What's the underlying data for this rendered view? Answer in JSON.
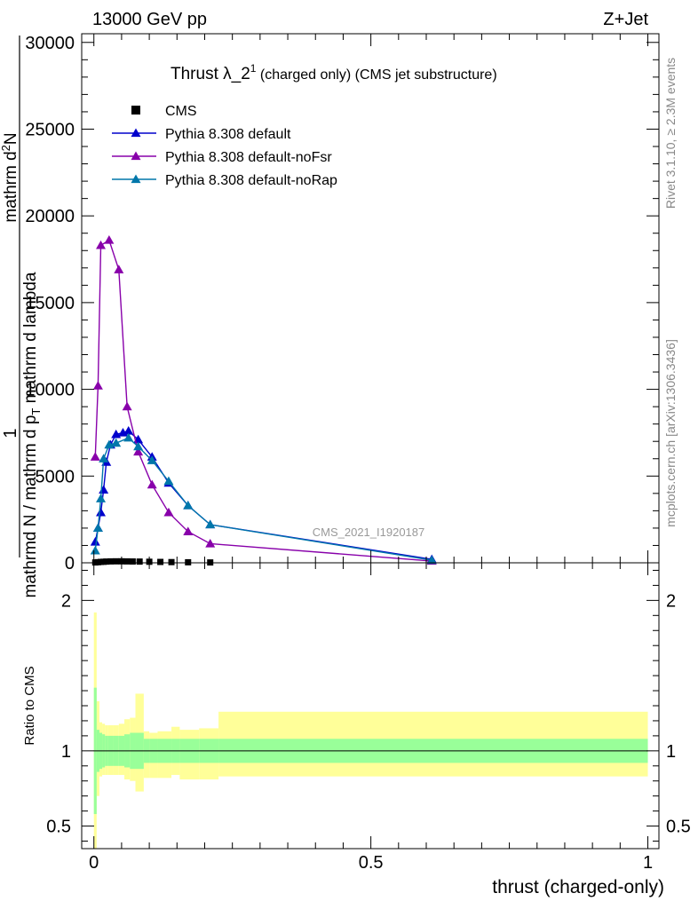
{
  "header": {
    "energy_label": "13000 GeV pp",
    "process_label": "Z+Jet"
  },
  "side_text": {
    "rivet": "Rivet 3.1.10, ≥ 2.3M events",
    "mcplots": "mcplots.cern.ch [arXiv:1306.3436]"
  },
  "watermark": "CMS_2021_I1920187",
  "chart_data": [
    {
      "type": "line",
      "title": "Thrust λ_2¹ (charged only) (CMS jet substructure)",
      "title_main": "Thrust λ_2",
      "title_sup": "1",
      "title_rest": " (charged only) (CMS jet substructure)",
      "ylabel_parts": {
        "line1": "1",
        "line2": "mathrmd N / mathrm d p",
        "line2_sub": "T",
        "line2_end": " mathrm d lambda",
        "line3": "mathrm d",
        "line3_sup": "2",
        "line3_end": "N"
      },
      "xlim": [
        -0.022,
        1.02
      ],
      "ylim": [
        0,
        30500
      ],
      "y_ticks": [
        0,
        5000,
        10000,
        15000,
        20000,
        25000,
        30000
      ],
      "y_tick_labels": [
        "0",
        "5000",
        "10000",
        "15000",
        "20000",
        "25000",
        "30000"
      ],
      "legend_position": "top-left",
      "series": [
        {
          "name": "CMS",
          "color": "#000000",
          "marker": "square",
          "x": [
            0.0025,
            0.0075,
            0.0125,
            0.0175,
            0.0225,
            0.03,
            0.04,
            0.05,
            0.06,
            0.07,
            0.0825,
            0.1,
            0.12,
            0.14,
            0.17,
            0.21
          ],
          "y": [
            20,
            35,
            50,
            60,
            70,
            80,
            85,
            85,
            80,
            75,
            70,
            60,
            50,
            40,
            30,
            20
          ]
        },
        {
          "name": "Pythia 8.308 default",
          "color": "#0000cc",
          "marker": "triangle",
          "x": [
            0.0025,
            0.0075,
            0.0125,
            0.0175,
            0.0225,
            0.03,
            0.04,
            0.0525,
            0.0625,
            0.08,
            0.105,
            0.135,
            0.17,
            0.21,
            0.61
          ],
          "y": [
            1200,
            2000,
            2900,
            4200,
            5800,
            6800,
            7400,
            7500,
            7600,
            7100,
            6100,
            4600,
            3300,
            2200,
            200
          ]
        },
        {
          "name": "Pythia 8.308 default-noFsr",
          "color": "#8800aa",
          "marker": "triangle",
          "x": [
            0.0025,
            0.0075,
            0.0125,
            0.0275,
            0.045,
            0.06,
            0.08,
            0.105,
            0.135,
            0.17,
            0.21,
            0.61
          ],
          "y": [
            6100,
            10200,
            18300,
            18600,
            16900,
            9000,
            6400,
            4500,
            2900,
            1800,
            1100,
            100
          ]
        },
        {
          "name": "Pythia 8.308 default-noRap",
          "color": "#0077aa",
          "marker": "triangle",
          "x": [
            0.0025,
            0.0075,
            0.0125,
            0.0175,
            0.0275,
            0.04,
            0.0625,
            0.08,
            0.105,
            0.135,
            0.17,
            0.21,
            0.61
          ],
          "y": [
            700,
            2000,
            3700,
            6000,
            6800,
            6900,
            7200,
            6700,
            5900,
            4700,
            3300,
            2200,
            150
          ]
        }
      ]
    },
    {
      "type": "area",
      "ylabel": "Ratio to CMS",
      "xlabel": "thrust (charged-only)",
      "xlim": [
        -0.022,
        1.02
      ],
      "ylim": [
        0.35,
        2.25
      ],
      "x_ticks": [
        0,
        0.5,
        1
      ],
      "x_tick_labels": [
        "0",
        "0.5",
        "1"
      ],
      "y_ticks": [
        0.5,
        1,
        2
      ],
      "y_tick_labels": [
        "0.5",
        "1",
        "2"
      ],
      "reference_line": 1,
      "bands": {
        "bin_edges": [
          0,
          0.005,
          0.01,
          0.015,
          0.02,
          0.025,
          0.035,
          0.045,
          0.055,
          0.065,
          0.075,
          0.09,
          0.1,
          0.115,
          0.14,
          0.155,
          0.19,
          0.225,
          1.0
        ],
        "inner_low": [
          0.58,
          0.86,
          0.88,
          0.89,
          0.9,
          0.9,
          0.9,
          0.9,
          0.89,
          0.88,
          0.88,
          0.92,
          0.92,
          0.92,
          0.92,
          0.92,
          0.92,
          0.92
        ],
        "inner_high": [
          1.42,
          1.14,
          1.12,
          1.11,
          1.1,
          1.1,
          1.1,
          1.1,
          1.11,
          1.12,
          1.12,
          1.08,
          1.08,
          1.08,
          1.08,
          1.08,
          1.08,
          1.08
        ],
        "outer_low": [
          0.35,
          0.7,
          0.83,
          0.84,
          0.84,
          0.84,
          0.84,
          0.84,
          0.81,
          0.8,
          0.73,
          0.82,
          0.82,
          0.82,
          0.84,
          0.81,
          0.81,
          0.83
        ],
        "outer_high": [
          1.92,
          1.33,
          1.19,
          1.18,
          1.17,
          1.17,
          1.17,
          1.18,
          1.21,
          1.22,
          1.38,
          1.13,
          1.12,
          1.13,
          1.16,
          1.14,
          1.15,
          1.26
        ],
        "inner_color": "#99ff99",
        "outer_color": "#ffff99"
      }
    }
  ]
}
